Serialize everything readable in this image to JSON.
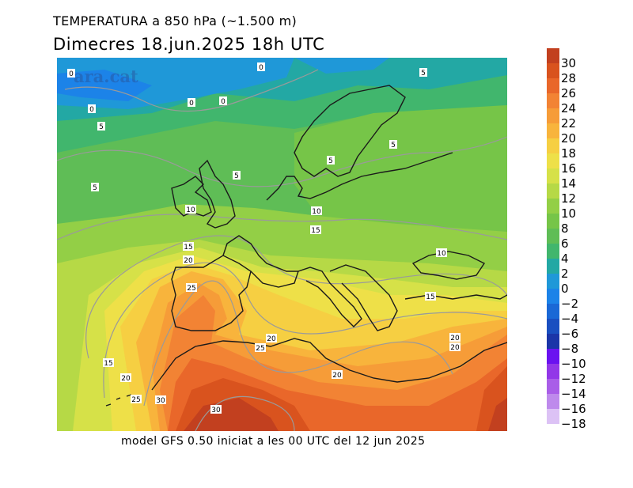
{
  "title": {
    "line1": "TEMPERATURA a 850 hPa (~1.500 m)",
    "line2": "Dimecres  18.jun.2025 18h UTC"
  },
  "watermark": "ara.cat",
  "footer": "model GFS 0.50 iniciat a les 00 UTC del 12 jun 2025",
  "colorbar": {
    "unit": "",
    "levels": [
      {
        "label": "30",
        "color": "#c2401f"
      },
      {
        "label": "28",
        "color": "#d9531e"
      },
      {
        "label": "26",
        "color": "#e9672a"
      },
      {
        "label": "24",
        "color": "#f28334"
      },
      {
        "label": "22",
        "color": "#f69c38"
      },
      {
        "label": "20",
        "color": "#f8b43c"
      },
      {
        "label": "18",
        "color": "#f6cf42"
      },
      {
        "label": "16",
        "color": "#eee048"
      },
      {
        "label": "14",
        "color": "#d6e148"
      },
      {
        "label": "12",
        "color": "#b6d946"
      },
      {
        "label": "10",
        "color": "#93cf46"
      },
      {
        "label": "8",
        "color": "#76c548"
      },
      {
        "label": "6",
        "color": "#5fbd56"
      },
      {
        "label": "4",
        "color": "#41b66d"
      },
      {
        "label": "2",
        "color": "#23a8a4"
      },
      {
        "label": "0",
        "color": "#1f98d8"
      },
      {
        "label": "−2",
        "color": "#1c83e8"
      },
      {
        "label": "−4",
        "color": "#1a68d6"
      },
      {
        "label": "−6",
        "color": "#1a4fc0"
      },
      {
        "label": "−8",
        "color": "#1b35a8"
      },
      {
        "label": "−10",
        "color": "#6a12f0"
      },
      {
        "label": "−12",
        "color": "#9238e8"
      },
      {
        "label": "−14",
        "color": "#a95ee8"
      },
      {
        "label": "−16",
        "color": "#be8aec"
      },
      {
        "label": "−18",
        "color": "#dcc2f5"
      }
    ]
  },
  "contour_labels": [
    "0",
    "0",
    "0",
    "0",
    "0",
    "5",
    "5",
    "5",
    "5",
    "5",
    "5",
    "10",
    "10",
    "10",
    "15",
    "15",
    "15",
    "15",
    "20",
    "20",
    "20",
    "20",
    "20",
    "20",
    "25",
    "25",
    "25",
    "30",
    "30"
  ]
}
